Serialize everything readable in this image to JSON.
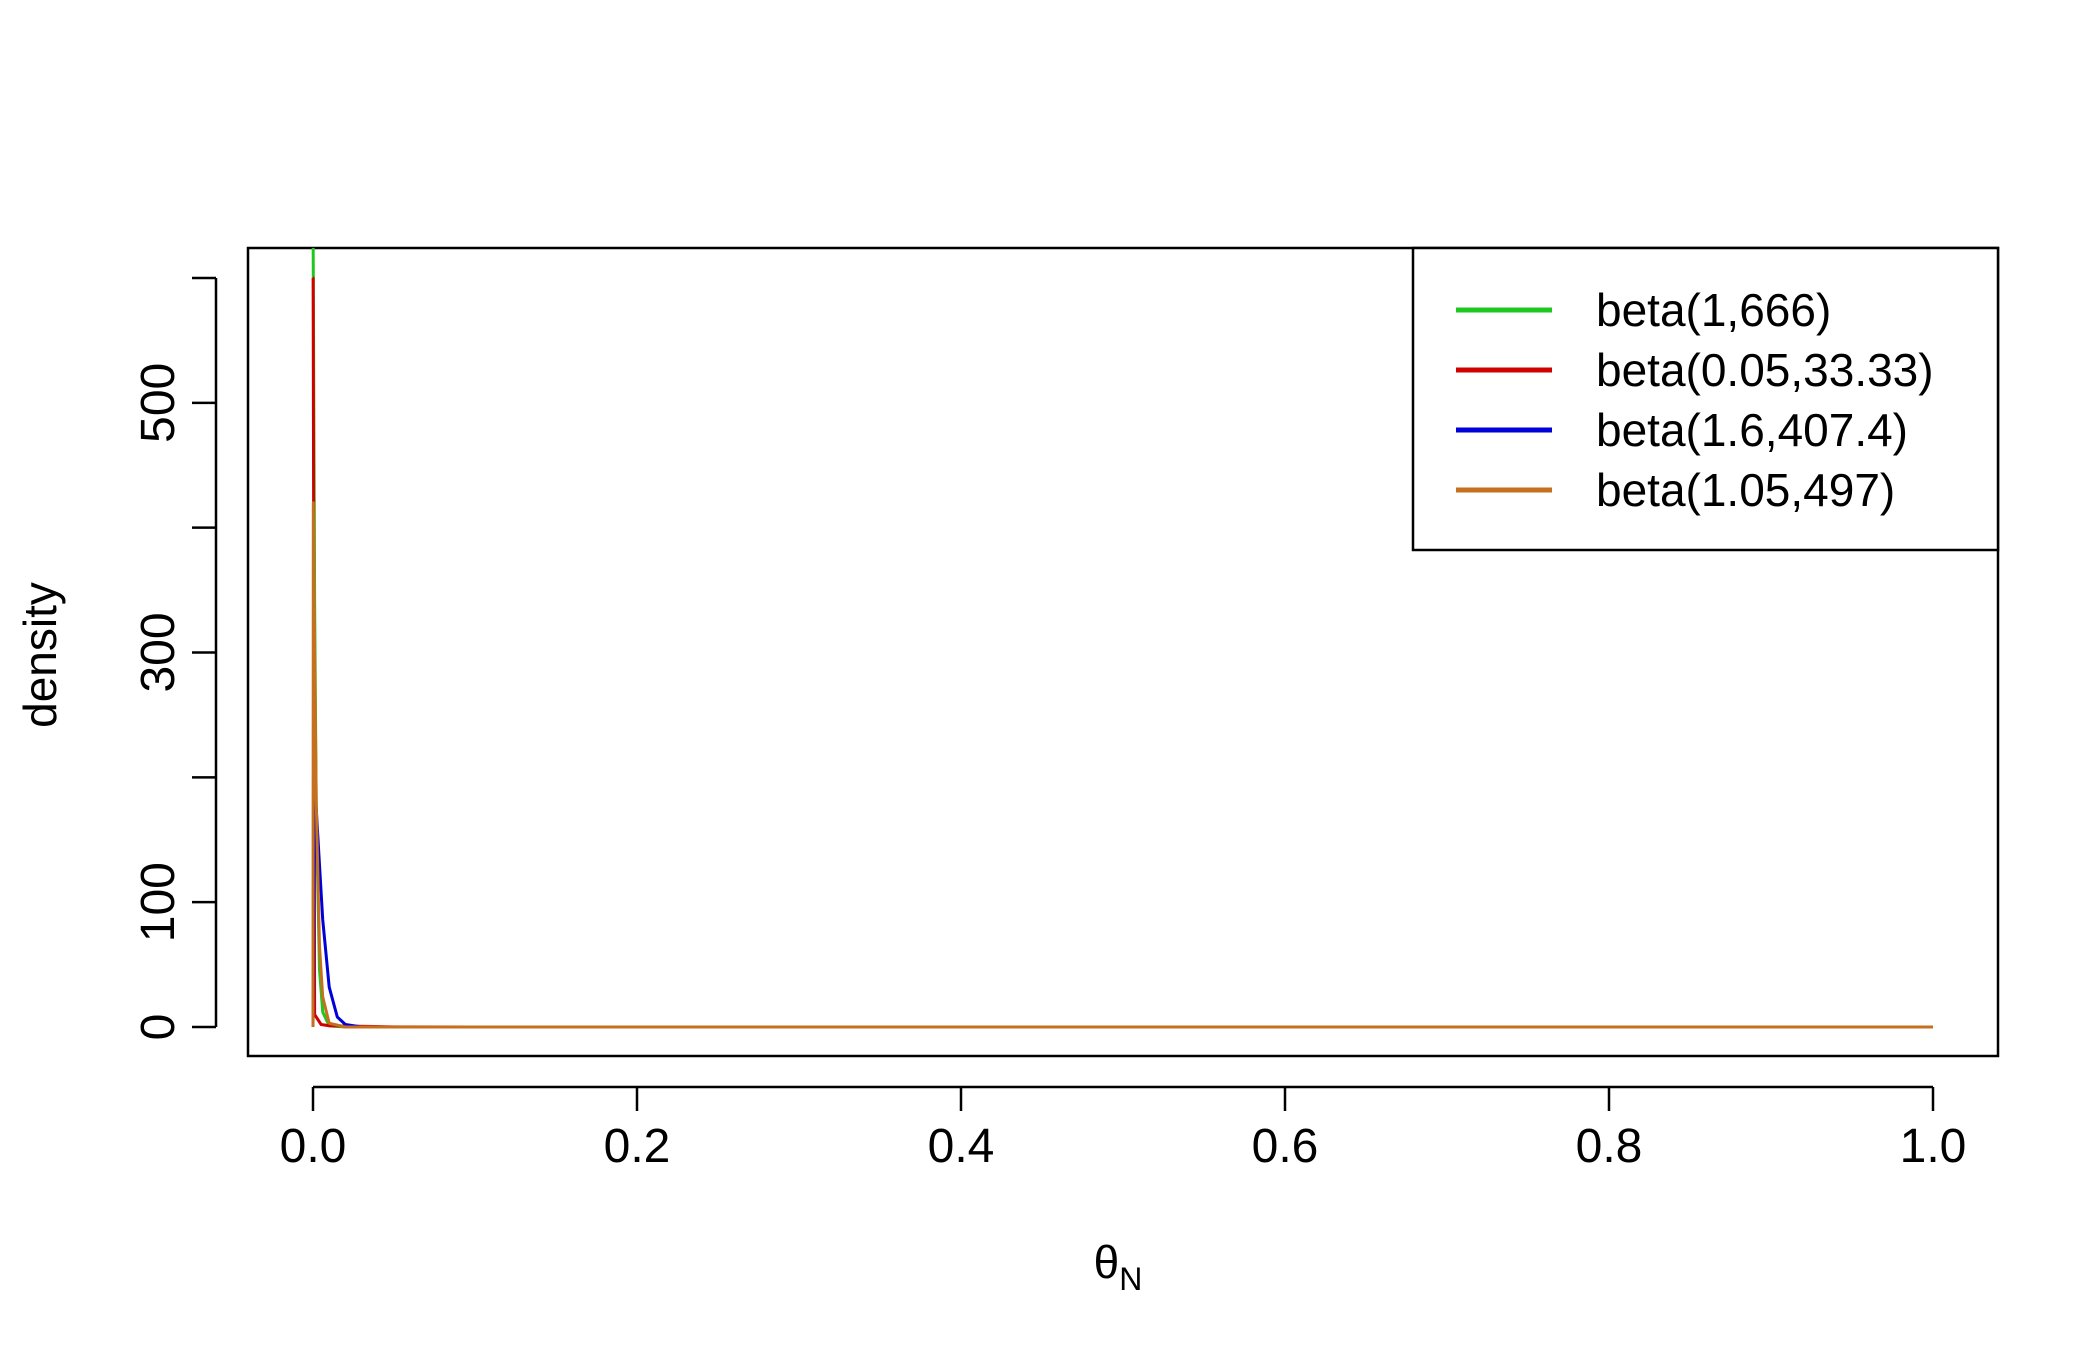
{
  "colors": {
    "axis": "#000000",
    "background": "#ffffff",
    "green": "#1fc81f",
    "red": "#d00000",
    "blue": "#0000d8",
    "orange": "#c66f1e"
  },
  "chart_data": {
    "type": "line",
    "title": "",
    "xlabel": "θ",
    "xlabel_subscript": "N",
    "ylabel": "density",
    "xlim": [
      0,
      1
    ],
    "ylim": [
      0,
      600
    ],
    "xticks": [
      0.0,
      0.2,
      0.4,
      0.6,
      0.8,
      1.0
    ],
    "xtick_labels": [
      "0.0",
      "0.2",
      "0.4",
      "0.6",
      "0.8",
      "1.0"
    ],
    "yticks": [
      0,
      100,
      200,
      300,
      400,
      500,
      600
    ],
    "ytick_labels": [
      "0",
      "100",
      "",
      "300",
      "",
      "500",
      ""
    ],
    "grid": false,
    "legend_position": "top-right",
    "series": [
      {
        "name": "beta(1,666)",
        "color_key": "green",
        "alpha": 1,
        "beta": 666,
        "points": [
          [
            0.0,
            666
          ],
          [
            0.001,
            341
          ],
          [
            0.002,
            175
          ],
          [
            0.004,
            46
          ],
          [
            0.006,
            12
          ],
          [
            0.01,
            0.9
          ],
          [
            0.02,
            0
          ],
          [
            1.0,
            0
          ]
        ]
      },
      {
        "name": "beta(0.05,33.33)",
        "color_key": "red",
        "alpha": 0.05,
        "beta": 33.33,
        "points": [
          [
            0.0,
            600
          ],
          [
            0.0001,
            600
          ],
          [
            0.001,
            10
          ],
          [
            0.005,
            2
          ],
          [
            0.01,
            1
          ],
          [
            0.05,
            0.1
          ],
          [
            0.1,
            0
          ],
          [
            1.0,
            0
          ]
        ]
      },
      {
        "name": "beta(1.6,407.4)",
        "color_key": "blue",
        "alpha": 1.6,
        "beta": 407.4,
        "points": [
          [
            0.0,
            0
          ],
          [
            0.001,
            170
          ],
          [
            0.0015,
            180
          ],
          [
            0.002,
            175
          ],
          [
            0.004,
            130
          ],
          [
            0.006,
            86
          ],
          [
            0.01,
            32
          ],
          [
            0.015,
            8
          ],
          [
            0.02,
            2
          ],
          [
            0.03,
            0
          ],
          [
            1.0,
            0
          ]
        ]
      },
      {
        "name": "beta(1.05,497)",
        "color_key": "orange",
        "alpha": 1.05,
        "beta": 497,
        "points": [
          [
            0.0,
            0
          ],
          [
            0.0002,
            420
          ],
          [
            0.001,
            300
          ],
          [
            0.002,
            180
          ],
          [
            0.004,
            65
          ],
          [
            0.006,
            24
          ],
          [
            0.01,
            3
          ],
          [
            0.02,
            0
          ],
          [
            1.0,
            0
          ]
        ]
      }
    ]
  }
}
